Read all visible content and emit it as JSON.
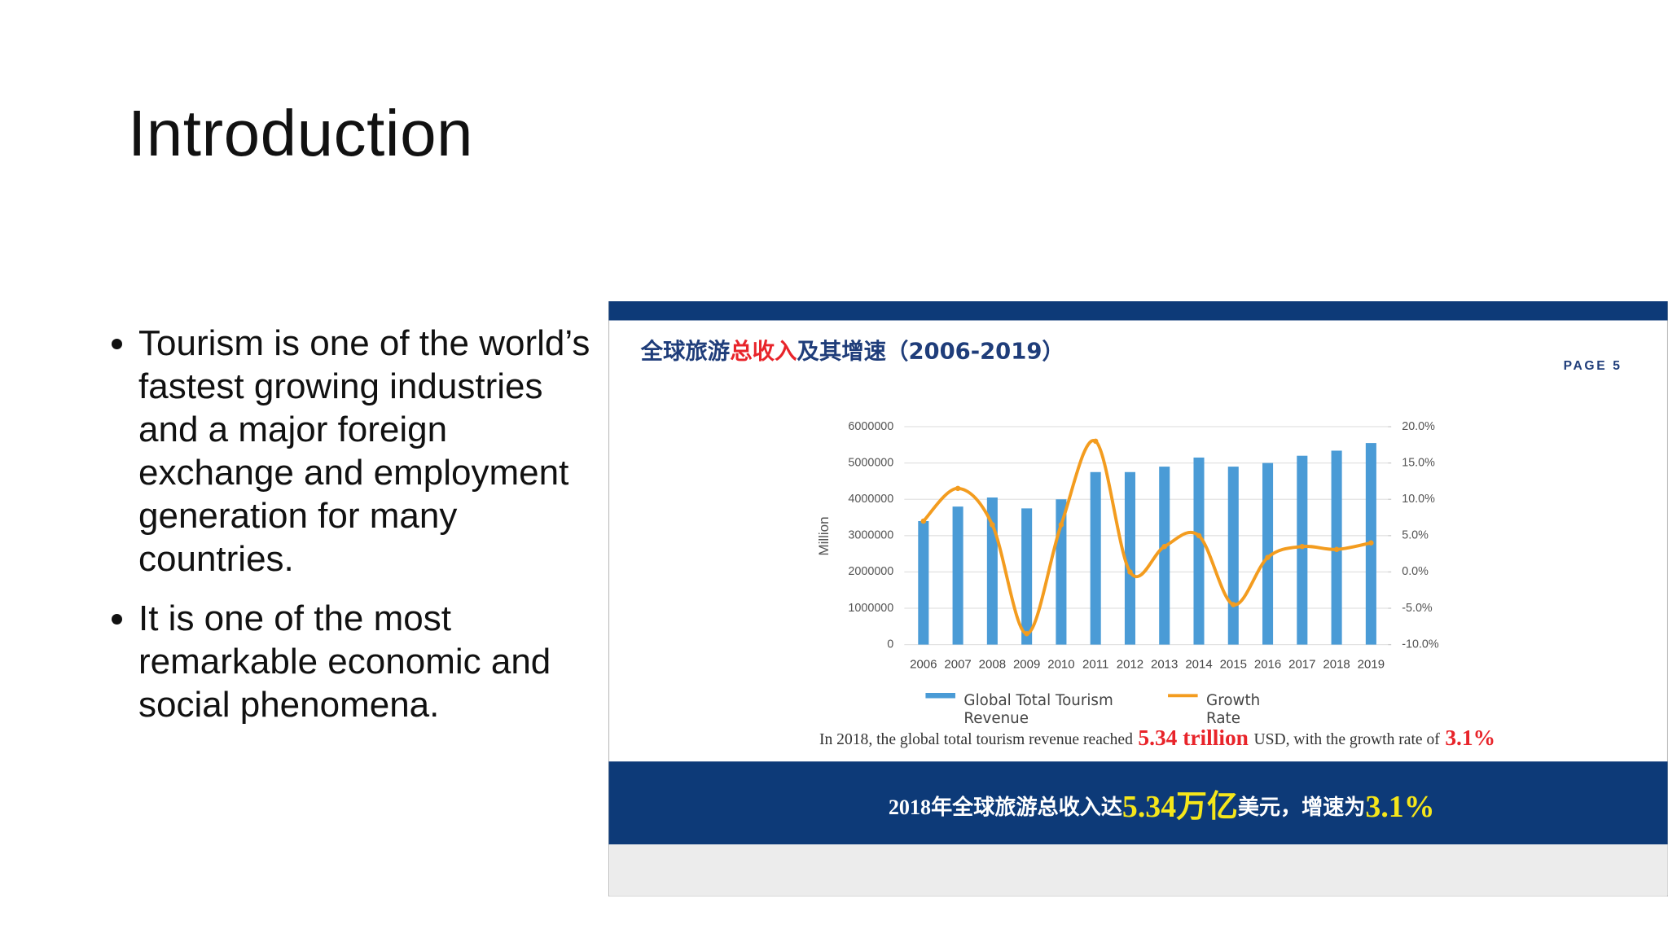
{
  "slide": {
    "title": "Introduction",
    "bullets": [
      "Tourism is one of the world’s fastest growing industries and a major foreign exchange and employment generation for many countries.",
      "It is one of the most remarkable economic and social phenomena."
    ]
  },
  "chart_data": {
    "type": "bar",
    "title_parts": [
      "全球旅游",
      "总收入",
      "及其增速（2006-2019）"
    ],
    "title_colors": [
      "#1f3d7a",
      "#e8242a",
      "#1f3d7a"
    ],
    "page_label": "PAGE 5",
    "ylabel": "Million",
    "categories": [
      "2006",
      "2007",
      "2008",
      "2009",
      "2010",
      "2011",
      "2012",
      "2013",
      "2014",
      "2015",
      "2016",
      "2017",
      "2018",
      "2019"
    ],
    "series": [
      {
        "name": "Global Total Tourism Revenue",
        "type": "bar",
        "color": "#4a9bd6",
        "values": [
          3400000,
          3800000,
          4050000,
          3750000,
          4000000,
          4750000,
          4750000,
          4900000,
          5150000,
          4900000,
          5000000,
          5200000,
          5340000,
          5550000
        ]
      },
      {
        "name": "Growth Rate",
        "type": "line",
        "axis": "y2",
        "color": "#f39c1f",
        "values": [
          7.0,
          11.5,
          6.5,
          -8.5,
          6.5,
          18.0,
          0.0,
          3.5,
          5.0,
          -4.5,
          2.0,
          3.5,
          3.1,
          4.0
        ]
      }
    ],
    "ylim": [
      0,
      6000000
    ],
    "yticks": [
      0,
      1000000,
      2000000,
      3000000,
      4000000,
      5000000,
      6000000
    ],
    "y2lim": [
      -10,
      20
    ],
    "y2ticks": [
      {
        "value": -10,
        "label": "-10.0%"
      },
      {
        "value": -5,
        "label": "-5.0%"
      },
      {
        "value": 0,
        "label": "0.0%"
      },
      {
        "value": 5,
        "label": "5.0%"
      },
      {
        "value": 10,
        "label": "10.0%"
      },
      {
        "value": 15,
        "label": "15.0%"
      },
      {
        "value": 20,
        "label": "20.0%"
      }
    ],
    "grid": true,
    "caption_parts": [
      "In 2018, the global total tourism revenue reached",
      "5.34 trillion",
      "USD, with the growth rate of",
      "3.1%"
    ],
    "caption_colors": [
      "#333333",
      "#e8242a",
      "#333333",
      "#e8242a"
    ],
    "banner_parts": [
      "2018年全球旅游总收入达",
      "5.34万亿",
      "美元，增速为",
      "3.1%"
    ],
    "banner_colors": [
      "#ffffff",
      "#f5e61a",
      "#ffffff",
      "#f5e61a"
    ]
  }
}
